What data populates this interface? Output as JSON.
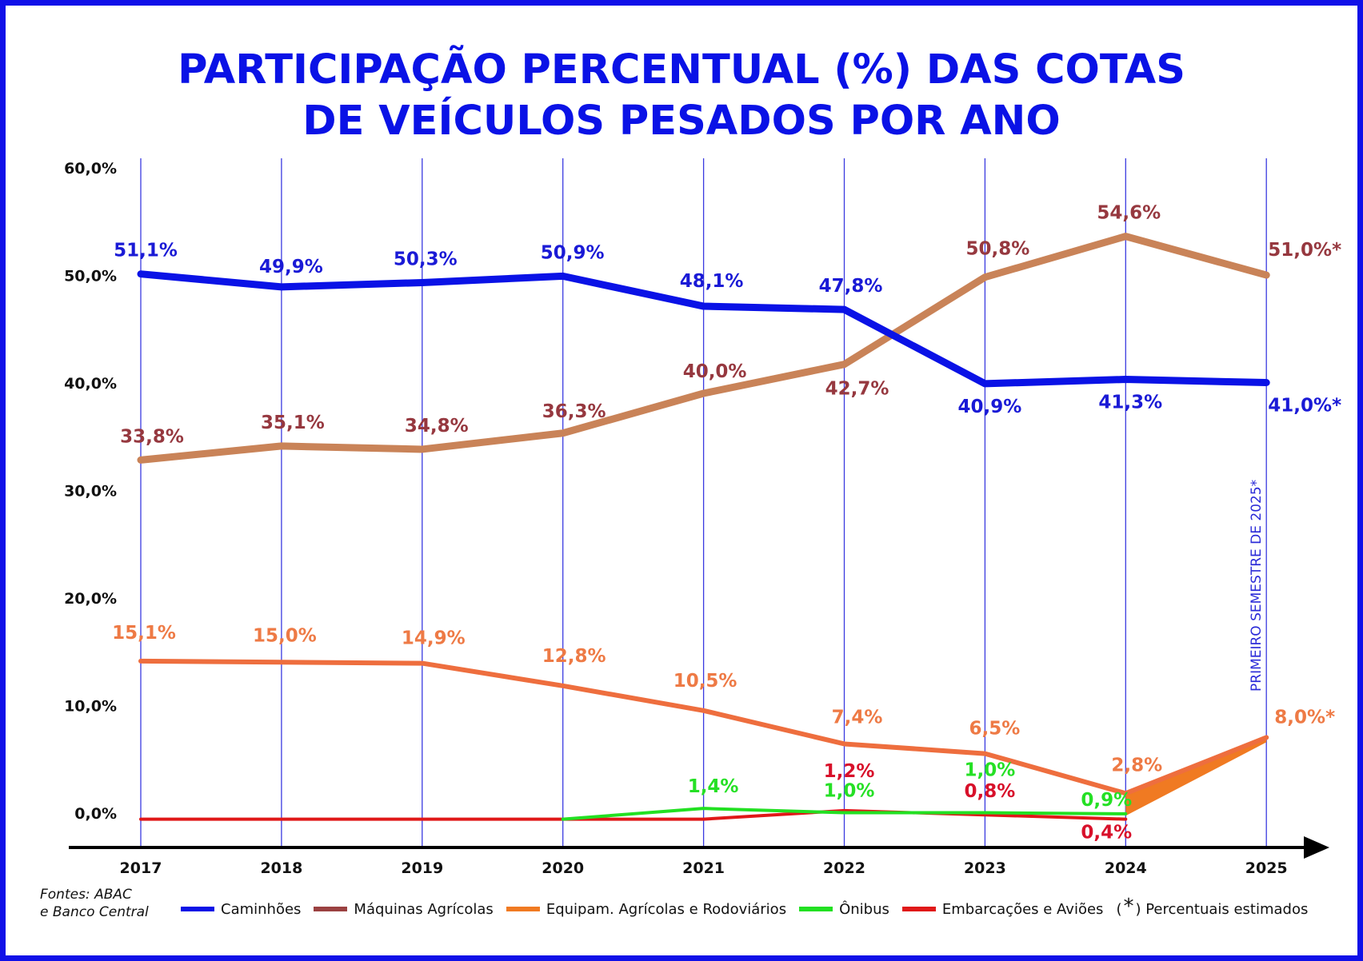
{
  "title_lines": [
    "PARTICIPAÇÃO PERCENTUAL (%)  DAS COTAS",
    "DE VEÍCULOS PESADOS POR ANO"
  ],
  "source_lines": [
    "Fontes: ABAC",
    "e Banco Central"
  ],
  "colors": {
    "frame": "#1010e8",
    "title": "#0a12e6",
    "gridline": "#3a3ae0"
  },
  "chart_data": {
    "type": "line",
    "categories": [
      "2017",
      "2018",
      "2019",
      "2020",
      "2021",
      "2022",
      "2023",
      "2024",
      "2025"
    ],
    "y_ticks": [
      "0,0%",
      "10,0%",
      "20,0%",
      "30,0%",
      "40,0%",
      "50,0%",
      "60,0%"
    ],
    "ylim": [
      0,
      60
    ],
    "vertical_gridlines": true,
    "x_axis_arrow": true,
    "legend_position": "bottom",
    "series": [
      {
        "name": "Caminhões",
        "color": "#0a12e6",
        "label_color": "#1a1ad6",
        "width": 9,
        "values": [
          51.1,
          49.9,
          50.3,
          50.9,
          48.1,
          47.8,
          40.9,
          41.3,
          41.0
        ],
        "labels": [
          "51,1%",
          "49,9%",
          "50,3%",
          "50,9%",
          "48,1%",
          "47,8%",
          "40,9%",
          "41,3%",
          "41,0%*"
        ]
      },
      {
        "name": "Máquinas Agrícolas",
        "color": "#c98358",
        "label_color": "#96383f",
        "legend_color": "#9b4141",
        "width": 9,
        "values": [
          33.8,
          35.1,
          34.8,
          36.3,
          40.0,
          42.7,
          50.8,
          54.6,
          51.0
        ],
        "labels": [
          "33,8%",
          "35,1%",
          "34,8%",
          "36,3%",
          "40,0%",
          "42,7%",
          "50,8%",
          "54,6%",
          "51,0%*"
        ]
      },
      {
        "name": "Equipam. Agrícolas e Rodoviários",
        "color": "#ee6e3e",
        "label_color": "#ee7a45",
        "legend_color": "#f07a22",
        "width": 6,
        "values": [
          15.1,
          15.0,
          14.9,
          12.8,
          10.5,
          7.4,
          6.5,
          2.8,
          8.0
        ],
        "labels": [
          "15,1%",
          "15,0%",
          "14,9%",
          "12,8%",
          "10,5%",
          "7,4%",
          "6,5%",
          "2,8%",
          "8,0%*"
        ]
      },
      {
        "name": "Ônibus",
        "color": "#22e022",
        "label_color": "#25e025",
        "width": 4,
        "start_index": 3,
        "end_index": 7,
        "values": [
          null,
          null,
          null,
          0.4,
          1.4,
          1.0,
          1.0,
          0.9,
          null
        ],
        "labels": [
          "",
          "",
          "",
          "",
          "1,4%",
          "1,0%",
          "1,0%",
          "0,9%",
          ""
        ]
      },
      {
        "name": "Embarcações e Aviões",
        "color": "#e01818",
        "label_color": "#d8102a",
        "width": 4,
        "start_index": 0,
        "end_index": 7,
        "values": [
          0.4,
          0.4,
          0.4,
          0.4,
          0.4,
          1.2,
          0.8,
          0.4,
          null
        ],
        "labels": [
          "",
          "",
          "",
          "",
          "",
          "1,2%",
          "0,8%",
          "0,4%",
          ""
        ]
      }
    ],
    "annotation": "PRIMEIRO SEMESTRE DE 2025*",
    "footnote": {
      "symbol": "*",
      "text": ") Percentuais estimados",
      "open": "("
    }
  }
}
